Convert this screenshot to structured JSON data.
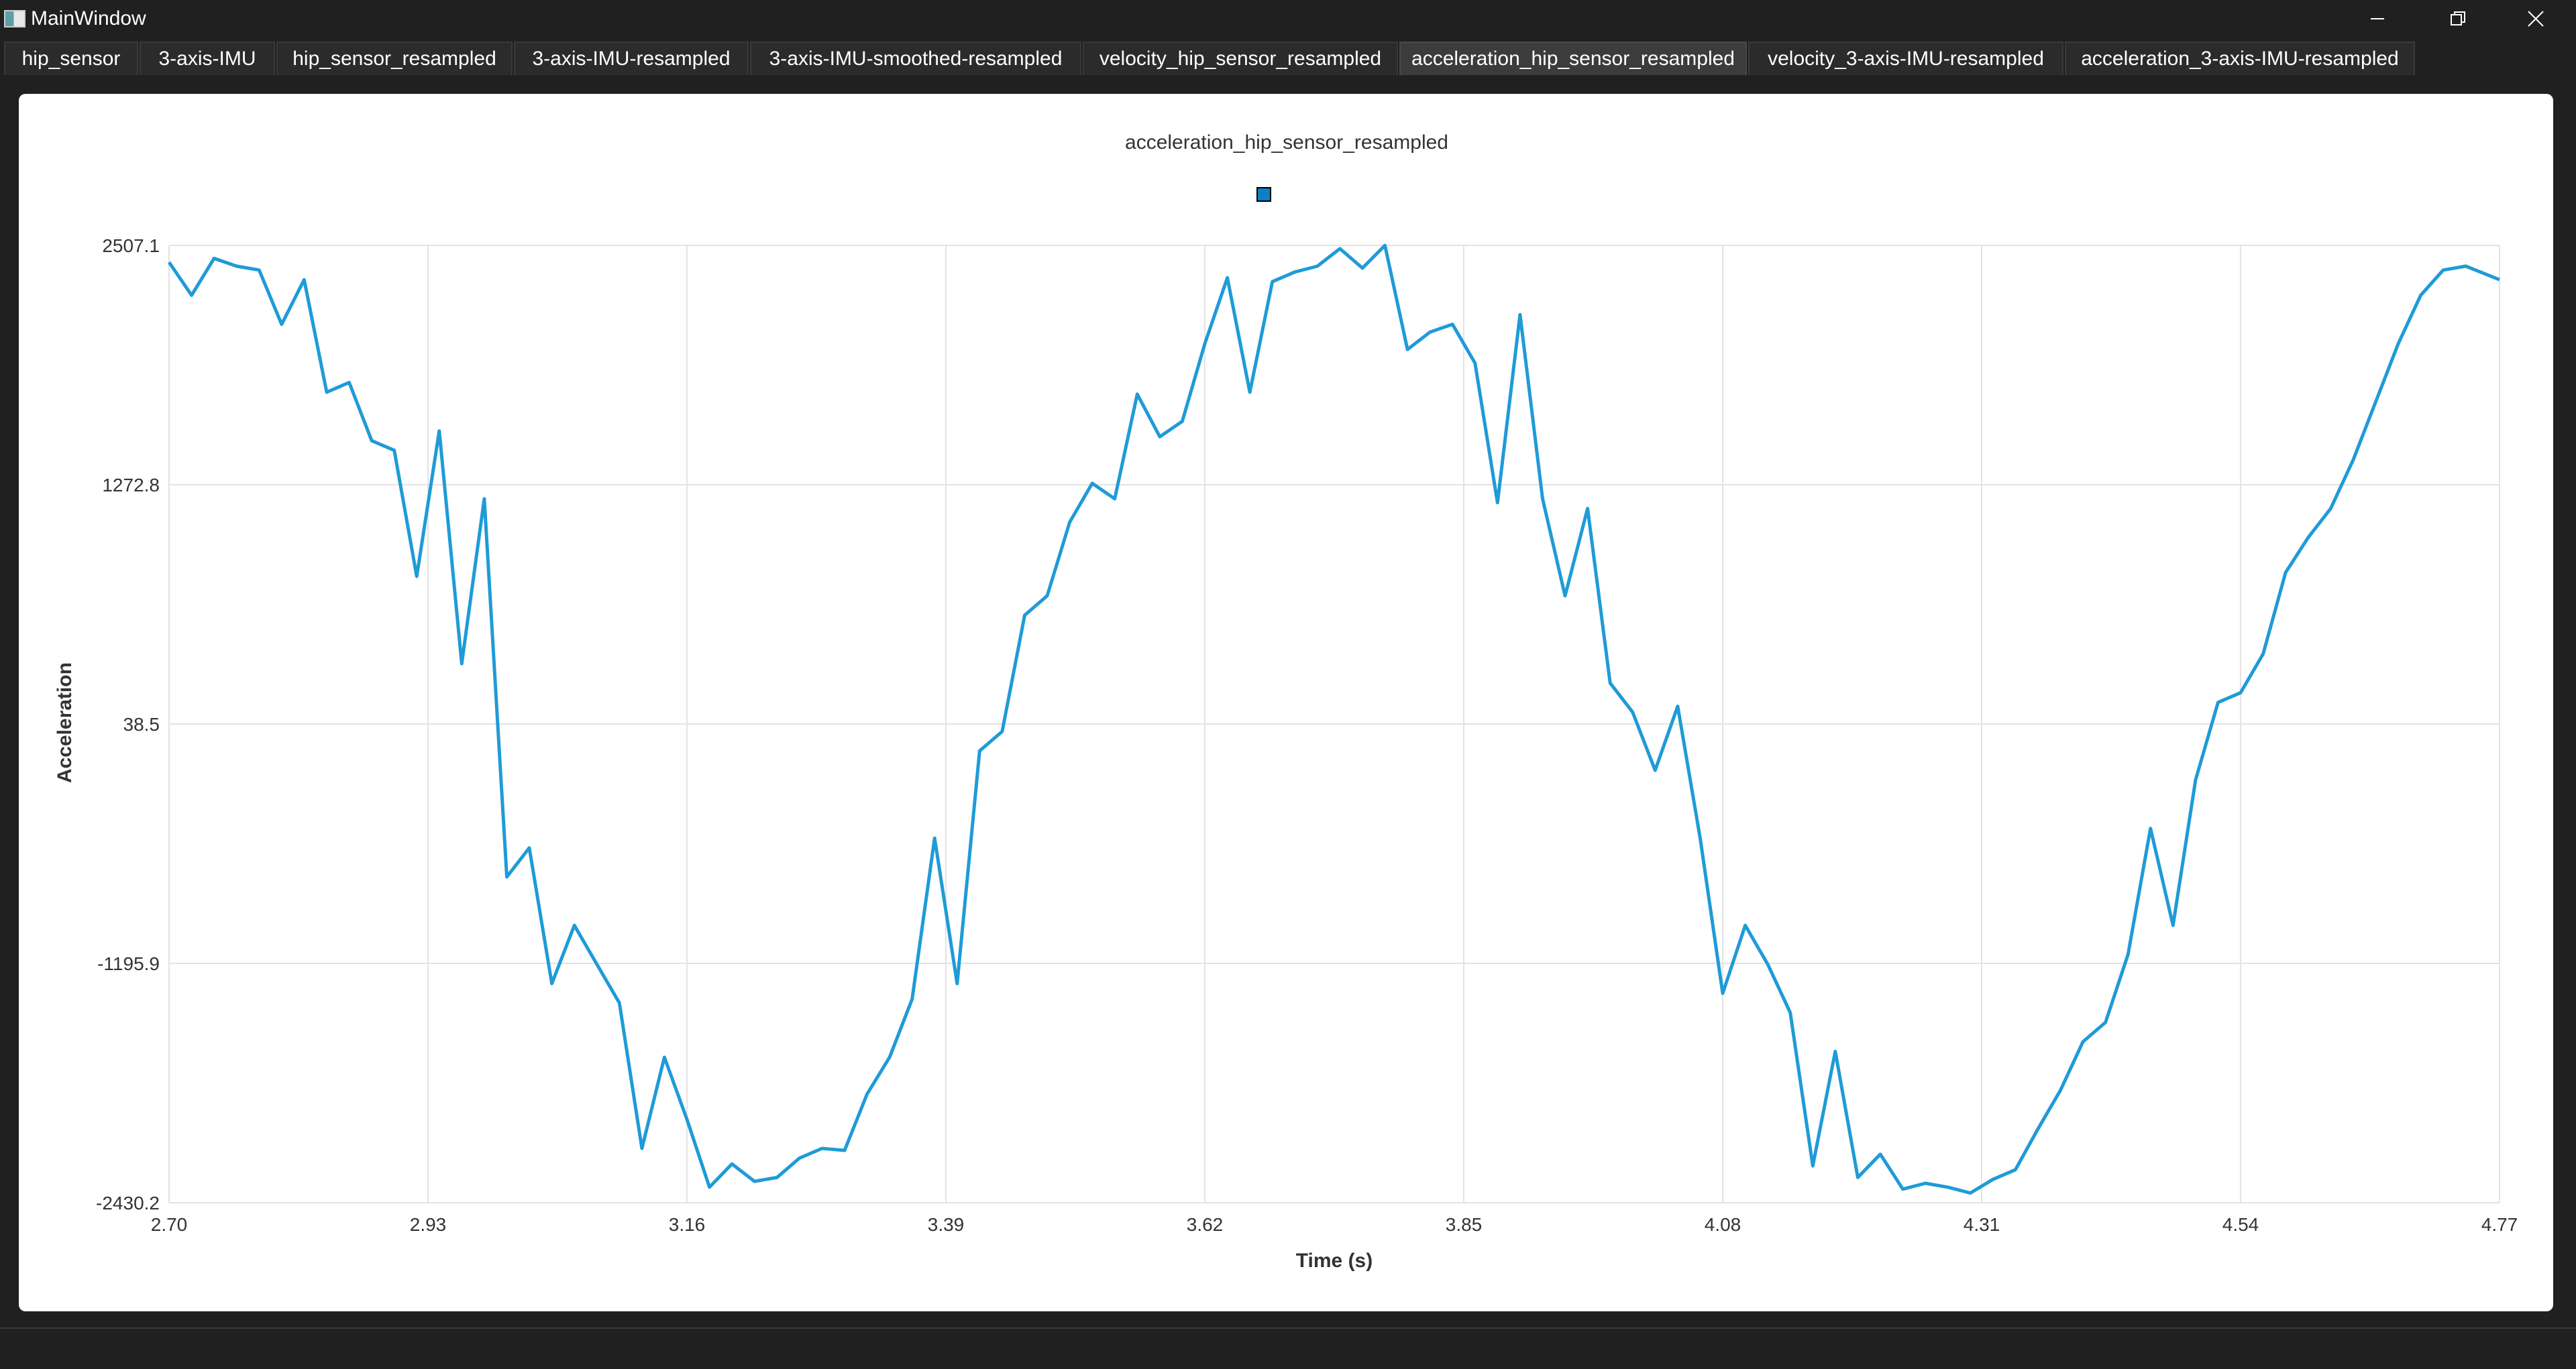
{
  "window": {
    "title": "MainWindow"
  },
  "tabs": [
    {
      "label": "hip_sensor",
      "active": false
    },
    {
      "label": "3-axis-IMU",
      "active": false
    },
    {
      "label": "hip_sensor_resampled",
      "active": false
    },
    {
      "label": "3-axis-IMU-resampled",
      "active": false
    },
    {
      "label": "3-axis-IMU-smoothed-resampled",
      "active": false
    },
    {
      "label": "velocity_hip_sensor_resampled",
      "active": false
    },
    {
      "label": "acceleration_hip_sensor_resampled",
      "active": true
    },
    {
      "label": "velocity_3-axis-IMU-resampled",
      "active": false
    },
    {
      "label": "acceleration_3-axis-IMU-resampled",
      "active": false
    }
  ],
  "colors": {
    "series": "#1f9bd7",
    "legend_fill": "#0d7fc2",
    "grid": "#e3e3e3",
    "axis_text": "#333333"
  },
  "chart_data": {
    "type": "line",
    "title": "acceleration_hip_sensor_resampled",
    "xlabel": "Time (s)",
    "ylabel": "Acceleration",
    "xlim": [
      2.7,
      4.77
    ],
    "ylim": [
      -2430.2,
      2507.1
    ],
    "x_ticks": [
      "2.70",
      "2.93",
      "3.16",
      "3.39",
      "3.62",
      "3.85",
      "4.08",
      "4.31",
      "4.54",
      "4.77"
    ],
    "y_ticks": [
      "2507.1",
      "1272.8",
      "38.5",
      "-1195.9",
      "-2430.2"
    ],
    "grid": true,
    "legend": "top-center",
    "series": [
      {
        "x": [
          2.7,
          2.72,
          2.74,
          2.76,
          2.78,
          2.8,
          2.82,
          2.84,
          2.86,
          2.88,
          2.9,
          2.92,
          2.94,
          2.96,
          2.98,
          3.0,
          3.02,
          3.04,
          3.06,
          3.08,
          3.1,
          3.12,
          3.14,
          3.16,
          3.18,
          3.2,
          3.22,
          3.24,
          3.26,
          3.28,
          3.3,
          3.32,
          3.34,
          3.36,
          3.38,
          3.4,
          3.42,
          3.44,
          3.46,
          3.48,
          3.5,
          3.52,
          3.54,
          3.56,
          3.58,
          3.6,
          3.62,
          3.64,
          3.66,
          3.68,
          3.7,
          3.72,
          3.74,
          3.76,
          3.78,
          3.8,
          3.82,
          3.84,
          3.86,
          3.88,
          3.9,
          3.92,
          3.94,
          3.96,
          3.98,
          4.0,
          4.02,
          4.04,
          4.06,
          4.08,
          4.1,
          4.12,
          4.14,
          4.16,
          4.18,
          4.2,
          4.22,
          4.24,
          4.26,
          4.28,
          4.3,
          4.32,
          4.34,
          4.36,
          4.38,
          4.4,
          4.42,
          4.44,
          4.46,
          4.48,
          4.5,
          4.52,
          4.54,
          4.56,
          4.58,
          4.6,
          4.62,
          4.64,
          4.66,
          4.68,
          4.7,
          4.72,
          4.74,
          4.77
        ],
        "y": [
          2420,
          2250,
          2440,
          2400,
          2380,
          2100,
          2330,
          1750,
          1800,
          1500,
          1450,
          800,
          1550,
          350,
          1200,
          -750,
          -600,
          -1300,
          -1000,
          -1200,
          -1400,
          -2150,
          -1680,
          -2000,
          -2350,
          -2230,
          -2320,
          -2300,
          -2200,
          -2150,
          -2160,
          -1870,
          -1680,
          -1380,
          -550,
          -1300,
          -100,
          0,
          600,
          700,
          1080,
          1280,
          1200,
          1740,
          1520,
          1600,
          2000,
          2340,
          1750,
          2320,
          2370,
          2400,
          2490,
          2390,
          2507,
          1970,
          2060,
          2100,
          1900,
          1180,
          2150,
          1200,
          700,
          1150,
          250,
          100,
          -200,
          130,
          -550,
          -1350,
          -1000,
          -1200,
          -1450,
          -2240,
          -1650,
          -2300,
          -2180,
          -2360,
          -2330,
          -2350,
          -2380,
          -2310,
          -2260,
          -2050,
          -1850,
          -1600,
          -1500,
          -1150,
          -500,
          -1000,
          -250,
          150,
          200,
          400,
          820,
          1000,
          1150,
          1400,
          1700,
          2000,
          2250,
          2380,
          2400,
          2330
        ]
      }
    ]
  }
}
